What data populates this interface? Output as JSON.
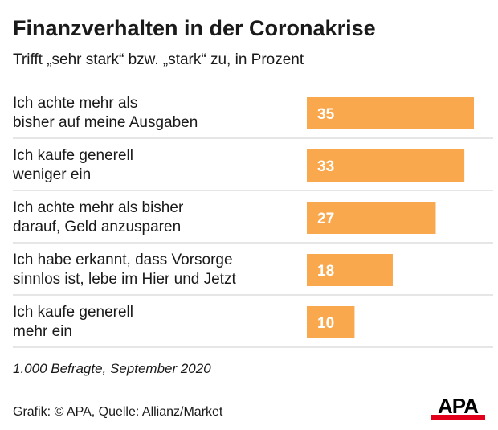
{
  "colors": {
    "bar": "#F9A84D",
    "bar_label": "#ffffff",
    "divider": "#cccccc",
    "logo_accent": "#e2001a"
  },
  "chart_data": {
    "type": "bar",
    "orientation": "horizontal",
    "title": "Finanzverhalten in der Coronakrise",
    "subtitle": "Trifft „sehr stark“ bzw. „stark“ zu, in Prozent",
    "categories": [
      [
        "Ich achte mehr als",
        "bisher auf meine Ausgaben"
      ],
      [
        "Ich kaufe generell",
        "weniger ein"
      ],
      [
        "Ich achte mehr als bisher",
        "darauf, Geld anzusparen"
      ],
      [
        "Ich habe erkannt, dass Vorsorge",
        "sinnlos ist, lebe im Hier und Jetzt"
      ],
      [
        "Ich kaufe generell",
        "mehr ein"
      ]
    ],
    "values": [
      35,
      33,
      27,
      18,
      10
    ],
    "value_labels": [
      "35",
      "33",
      "27",
      "18",
      "10"
    ],
    "xlim": [
      0,
      35
    ],
    "grid": false
  },
  "note": "1.000 Befragte, September 2020",
  "source": "Grafik: © APA, Quelle: Allianz/Market",
  "logo": "APA"
}
